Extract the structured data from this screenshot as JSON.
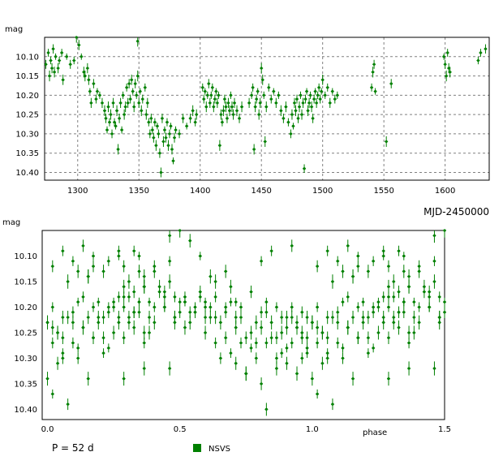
{
  "chart_data": [
    {
      "type": "scatter",
      "ylabel": "mag",
      "xlabel": "MJD-2450000",
      "xlim": [
        1273,
        1636
      ],
      "ylim": [
        10.42,
        10.05
      ],
      "xticks": [
        1300,
        1350,
        1400,
        1450,
        1500,
        1550,
        1600
      ],
      "yticks": [
        10.1,
        10.15,
        10.2,
        10.25,
        10.3,
        10.35,
        10.4
      ],
      "grid": true,
      "series_ref": "NSVS"
    },
    {
      "type": "scatter",
      "ylabel": "mag",
      "xlabel": "phase",
      "xlim": [
        -0.02,
        1.5
      ],
      "ylim": [
        10.42,
        10.05
      ],
      "xticks": [
        0.0,
        0.5,
        1.0,
        1.5
      ],
      "yticks": [
        10.1,
        10.15,
        10.2,
        10.25,
        10.3,
        10.35,
        10.4
      ],
      "grid": false,
      "period_note": "P = 52 d",
      "series_ref": "NSVS"
    }
  ],
  "series": {
    "name": "NSVS",
    "color": "#008000",
    "period_days": 52,
    "epoch_mjd": 1273,
    "points": [
      [
        1274,
        10.12
      ],
      [
        1276,
        10.09
      ],
      [
        1277,
        10.15
      ],
      [
        1278,
        10.11
      ],
      [
        1279,
        10.13
      ],
      [
        1280,
        10.08
      ],
      [
        1281,
        10.14
      ],
      [
        1282,
        10.1
      ],
      [
        1284,
        10.13
      ],
      [
        1285,
        10.11
      ],
      [
        1287,
        10.09
      ],
      [
        1288,
        10.16
      ],
      [
        1291,
        10.1
      ],
      [
        1294,
        10.12
      ],
      [
        1297,
        10.11
      ],
      [
        1299,
        10.05
      ],
      [
        1301,
        10.07
      ],
      [
        1303,
        10.1
      ],
      [
        1305,
        10.14
      ],
      [
        1306,
        10.15
      ],
      [
        1308,
        10.13
      ],
      [
        1309,
        10.16
      ],
      [
        1310,
        10.19
      ],
      [
        1311,
        10.22
      ],
      [
        1313,
        10.17
      ],
      [
        1315,
        10.21
      ],
      [
        1316,
        10.19
      ],
      [
        1318,
        10.2
      ],
      [
        1320,
        10.22
      ],
      [
        1322,
        10.24
      ],
      [
        1323,
        10.26
      ],
      [
        1324,
        10.29
      ],
      [
        1325,
        10.23
      ],
      [
        1326,
        10.27
      ],
      [
        1327,
        10.25
      ],
      [
        1328,
        10.3
      ],
      [
        1329,
        10.22
      ],
      [
        1330,
        10.27
      ],
      [
        1331,
        10.28
      ],
      [
        1332,
        10.24
      ],
      [
        1333,
        10.34
      ],
      [
        1334,
        10.26
      ],
      [
        1335,
        10.22
      ],
      [
        1336,
        10.29
      ],
      [
        1337,
        10.2
      ],
      [
        1338,
        10.25
      ],
      [
        1339,
        10.23
      ],
      [
        1340,
        10.18
      ],
      [
        1341,
        10.22
      ],
      [
        1342,
        10.17
      ],
      [
        1343,
        10.21
      ],
      [
        1344,
        10.16
      ],
      [
        1345,
        10.19
      ],
      [
        1346,
        10.23
      ],
      [
        1347,
        10.17
      ],
      [
        1348,
        10.2
      ],
      [
        1349,
        10.15
      ],
      [
        1350,
        10.22
      ],
      [
        1351,
        10.19
      ],
      [
        1352,
        10.24
      ],
      [
        1353,
        10.21
      ],
      [
        1349,
        10.06
      ],
      [
        1355,
        10.18
      ],
      [
        1356,
        10.25
      ],
      [
        1357,
        10.22
      ],
      [
        1358,
        10.27
      ],
      [
        1359,
        10.3
      ],
      [
        1360,
        10.26
      ],
      [
        1361,
        10.29
      ],
      [
        1362,
        10.31
      ],
      [
        1363,
        10.27
      ],
      [
        1364,
        10.33
      ],
      [
        1365,
        10.28
      ],
      [
        1366,
        10.3
      ],
      [
        1367,
        10.35
      ],
      [
        1368,
        10.4
      ],
      [
        1369,
        10.26
      ],
      [
        1370,
        10.32
      ],
      [
        1371,
        10.29
      ],
      [
        1372,
        10.31
      ],
      [
        1373,
        10.27
      ],
      [
        1374,
        10.33
      ],
      [
        1375,
        10.3
      ],
      [
        1376,
        10.28
      ],
      [
        1377,
        10.34
      ],
      [
        1378,
        10.37
      ],
      [
        1379,
        10.31
      ],
      [
        1380,
        10.29
      ],
      [
        1383,
        10.3
      ],
      [
        1386,
        10.26
      ],
      [
        1389,
        10.28
      ],
      [
        1392,
        10.26
      ],
      [
        1394,
        10.24
      ],
      [
        1396,
        10.27
      ],
      [
        1397,
        10.25
      ],
      [
        1402,
        10.18
      ],
      [
        1403,
        10.21
      ],
      [
        1404,
        10.19
      ],
      [
        1405,
        10.23
      ],
      [
        1406,
        10.2
      ],
      [
        1407,
        10.17
      ],
      [
        1408,
        10.22
      ],
      [
        1409,
        10.2
      ],
      [
        1410,
        10.18
      ],
      [
        1411,
        10.23
      ],
      [
        1412,
        10.21
      ],
      [
        1413,
        10.19
      ],
      [
        1414,
        10.22
      ],
      [
        1415,
        10.2
      ],
      [
        1416,
        10.33
      ],
      [
        1417,
        10.25
      ],
      [
        1418,
        10.27
      ],
      [
        1419,
        10.24
      ],
      [
        1420,
        10.21
      ],
      [
        1421,
        10.23
      ],
      [
        1422,
        10.26
      ],
      [
        1423,
        10.22
      ],
      [
        1424,
        10.24
      ],
      [
        1425,
        10.2
      ],
      [
        1426,
        10.23
      ],
      [
        1427,
        10.25
      ],
      [
        1428,
        10.22
      ],
      [
        1430,
        10.24
      ],
      [
        1432,
        10.26
      ],
      [
        1434,
        10.23
      ],
      [
        1440,
        10.22
      ],
      [
        1442,
        10.2
      ],
      [
        1443,
        10.18
      ],
      [
        1444,
        10.34
      ],
      [
        1445,
        10.23
      ],
      [
        1446,
        10.21
      ],
      [
        1447,
        10.19
      ],
      [
        1448,
        10.25
      ],
      [
        1449,
        10.22
      ],
      [
        1450,
        10.13
      ],
      [
        1451,
        10.16
      ],
      [
        1452,
        10.2
      ],
      [
        1453,
        10.32
      ],
      [
        1454,
        10.23
      ],
      [
        1456,
        10.18
      ],
      [
        1458,
        10.21
      ],
      [
        1460,
        10.19
      ],
      [
        1462,
        10.22
      ],
      [
        1464,
        10.2
      ],
      [
        1466,
        10.24
      ],
      [
        1468,
        10.26
      ],
      [
        1470,
        10.23
      ],
      [
        1472,
        10.27
      ],
      [
        1474,
        10.3
      ],
      [
        1475,
        10.25
      ],
      [
        1476,
        10.28
      ],
      [
        1477,
        10.22
      ],
      [
        1478,
        10.24
      ],
      [
        1479,
        10.21
      ],
      [
        1480,
        10.26
      ],
      [
        1481,
        10.23
      ],
      [
        1482,
        10.2
      ],
      [
        1483,
        10.25
      ],
      [
        1484,
        10.22
      ],
      [
        1485,
        10.39
      ],
      [
        1486,
        10.21
      ],
      [
        1487,
        10.19
      ],
      [
        1488,
        10.24
      ],
      [
        1489,
        10.22
      ],
      [
        1490,
        10.2
      ],
      [
        1491,
        10.23
      ],
      [
        1492,
        10.26
      ],
      [
        1493,
        10.21
      ],
      [
        1494,
        10.19
      ],
      [
        1495,
        10.22
      ],
      [
        1496,
        10.2
      ],
      [
        1497,
        10.18
      ],
      [
        1498,
        10.21
      ],
      [
        1499,
        10.19
      ],
      [
        1500,
        10.16
      ],
      [
        1502,
        10.2
      ],
      [
        1504,
        10.18
      ],
      [
        1506,
        10.22
      ],
      [
        1508,
        10.19
      ],
      [
        1510,
        10.21
      ],
      [
        1512,
        10.2
      ],
      [
        1540,
        10.18
      ],
      [
        1541,
        10.14
      ],
      [
        1542,
        10.12
      ],
      [
        1543,
        10.19
      ],
      [
        1552,
        10.32
      ],
      [
        1556,
        10.17
      ],
      [
        1599,
        10.1
      ],
      [
        1600,
        10.12
      ],
      [
        1601,
        10.15
      ],
      [
        1602,
        10.09
      ],
      [
        1603,
        10.13
      ],
      [
        1604,
        10.14
      ],
      [
        1627,
        10.11
      ],
      [
        1629,
        10.09
      ],
      [
        1633,
        10.08
      ]
    ]
  },
  "legend": {
    "label": "NSVS"
  }
}
